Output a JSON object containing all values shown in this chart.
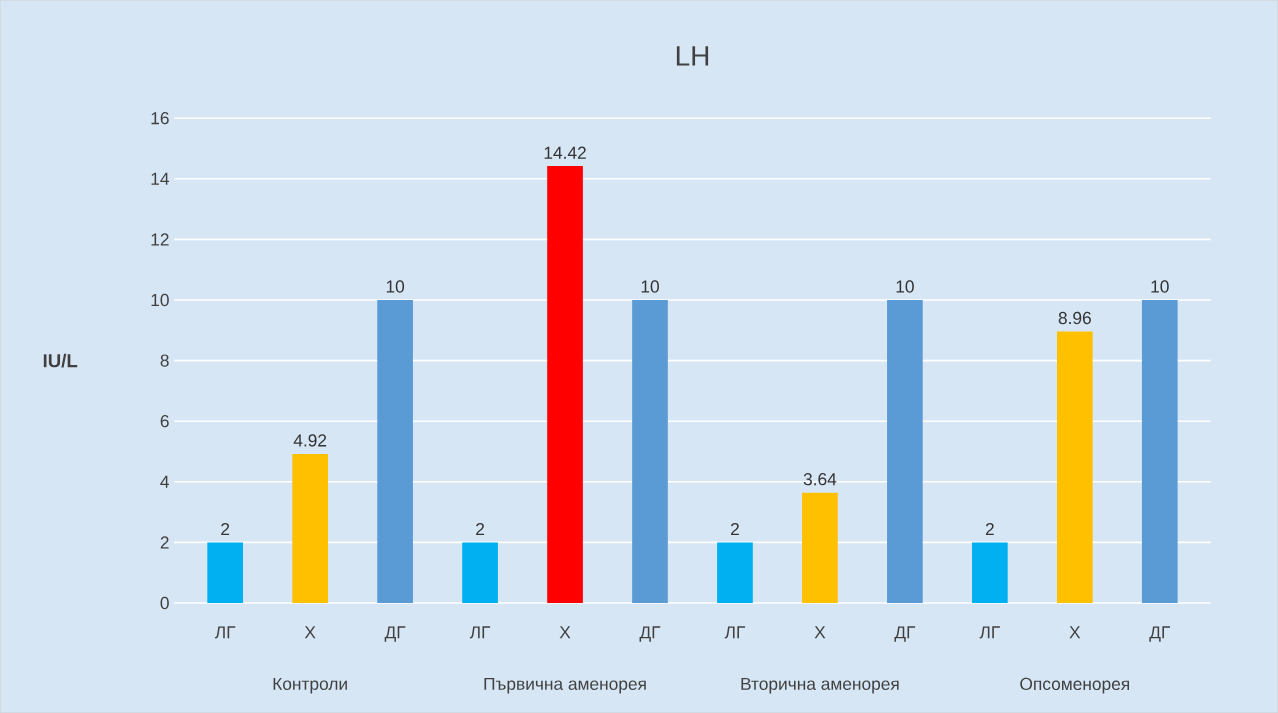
{
  "chart_data": {
    "type": "bar",
    "title": "LH",
    "ylabel": "**IU/L**",
    "categories": [
      "ЛГ",
      "Х",
      "ДГ",
      "ЛГ",
      "Х",
      "ДГ",
      "ЛГ",
      "Х",
      "ДГ",
      "ЛГ",
      "Х",
      "ДГ"
    ],
    "values": [
      2,
      4.92,
      10,
      2,
      14.42,
      10,
      2,
      3.64,
      10,
      2,
      8.96,
      10
    ],
    "colors": [
      "#00b0f0",
      "#ffc000",
      "#5b9bd5",
      "#00b0f0",
      "#ff0000",
      "#5b9bd5",
      "#00b0f0",
      "#ffc000",
      "#5b9bd5",
      "#00b0f0",
      "#ffc000",
      "#5b9bd5"
    ],
    "ylim": [
      0,
      16
    ],
    "yticks": [
      0,
      2,
      4,
      6,
      8,
      10,
      12,
      14,
      16
    ],
    "grid": "y",
    "data_labels": true,
    "annotations": [
      "Контроли",
      "Първична аменорея",
      "Вторична аменорея",
      "Опсоменорея"
    ]
  }
}
